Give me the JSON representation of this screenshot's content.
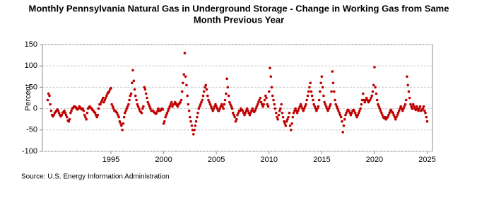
{
  "chart_data": {
    "type": "scatter",
    "title": [
      "Monthly Pennsylvania Natural Gas in Underground Storage - Change in Working Gas from Same",
      "Month Previous Year"
    ],
    "ylabel": "Percent",
    "source": "Source: U.S. Energy Information Administration",
    "color": "#c00000",
    "grid": true,
    "xlim": [
      1988.5,
      2025.5
    ],
    "xticks": [
      1995,
      2000,
      2005,
      2010,
      2015,
      2020,
      2025
    ],
    "ylim": [
      -100,
      150
    ],
    "yticks": [
      -100,
      -50,
      0,
      50,
      100,
      150
    ],
    "x": [
      1989,
      1989.08,
      1989.17,
      1989.25,
      1989.33,
      1989.42,
      1989.5,
      1989.58,
      1989.67,
      1989.75,
      1989.83,
      1989.92,
      1990,
      1990.08,
      1990.17,
      1990.25,
      1990.33,
      1990.42,
      1990.5,
      1990.58,
      1990.67,
      1990.75,
      1990.83,
      1990.92,
      1991,
      1991.08,
      1991.17,
      1991.25,
      1991.33,
      1991.42,
      1991.5,
      1991.58,
      1991.67,
      1991.75,
      1991.83,
      1991.92,
      1992,
      1992.08,
      1992.17,
      1992.25,
      1992.33,
      1992.42,
      1992.5,
      1992.58,
      1992.67,
      1992.75,
      1992.83,
      1992.92,
      1993,
      1993.08,
      1993.17,
      1993.25,
      1993.33,
      1993.42,
      1993.5,
      1993.58,
      1993.67,
      1993.75,
      1993.83,
      1993.92,
      1994,
      1994.08,
      1994.17,
      1994.25,
      1994.33,
      1994.42,
      1994.5,
      1994.58,
      1994.67,
      1994.75,
      1994.83,
      1994.92,
      1995,
      1995.08,
      1995.17,
      1995.25,
      1995.33,
      1995.42,
      1995.5,
      1995.58,
      1995.67,
      1995.75,
      1995.83,
      1995.92,
      1996,
      1996.08,
      1996.17,
      1996.25,
      1996.33,
      1996.42,
      1996.5,
      1996.58,
      1996.67,
      1996.75,
      1996.83,
      1996.92,
      1997,
      1997.08,
      1997.17,
      1997.25,
      1997.33,
      1997.42,
      1997.5,
      1997.58,
      1997.67,
      1997.75,
      1997.83,
      1997.92,
      1998,
      1998.08,
      1998.17,
      1998.25,
      1998.33,
      1998.42,
      1998.5,
      1998.58,
      1998.67,
      1998.75,
      1998.83,
      1998.92,
      1999,
      1999.08,
      1999.17,
      1999.25,
      1999.33,
      1999.42,
      1999.5,
      1999.58,
      1999.67,
      1999.75,
      1999.83,
      1999.92,
      2000,
      2000.08,
      2000.17,
      2000.25,
      2000.33,
      2000.42,
      2000.5,
      2000.58,
      2000.67,
      2000.75,
      2000.83,
      2000.92,
      2001,
      2001.08,
      2001.17,
      2001.25,
      2001.33,
      2001.42,
      2001.5,
      2001.58,
      2001.67,
      2001.75,
      2001.83,
      2001.92,
      2002,
      2002.08,
      2002.17,
      2002.25,
      2002.33,
      2002.42,
      2002.5,
      2002.58,
      2002.67,
      2002.75,
      2002.83,
      2002.92,
      2003,
      2003.08,
      2003.17,
      2003.25,
      2003.33,
      2003.42,
      2003.5,
      2003.58,
      2003.67,
      2003.75,
      2003.83,
      2003.92,
      2004,
      2004.08,
      2004.17,
      2004.25,
      2004.33,
      2004.42,
      2004.5,
      2004.58,
      2004.67,
      2004.75,
      2004.83,
      2004.92,
      2005,
      2005.08,
      2005.17,
      2005.25,
      2005.33,
      2005.42,
      2005.5,
      2005.58,
      2005.67,
      2005.75,
      2005.83,
      2005.92,
      2006,
      2006.08,
      2006.17,
      2006.25,
      2006.33,
      2006.42,
      2006.5,
      2006.58,
      2006.67,
      2006.75,
      2006.83,
      2006.92,
      2007,
      2007.08,
      2007.17,
      2007.25,
      2007.33,
      2007.42,
      2007.5,
      2007.58,
      2007.67,
      2007.75,
      2007.83,
      2007.92,
      2008,
      2008.08,
      2008.17,
      2008.25,
      2008.33,
      2008.42,
      2008.5,
      2008.58,
      2008.67,
      2008.75,
      2008.83,
      2008.92,
      2009,
      2009.08,
      2009.17,
      2009.25,
      2009.33,
      2009.42,
      2009.5,
      2009.58,
      2009.67,
      2009.75,
      2009.83,
      2009.92,
      2010,
      2010.08,
      2010.17,
      2010.25,
      2010.33,
      2010.42,
      2010.5,
      2010.58,
      2010.67,
      2010.75,
      2010.83,
      2010.92,
      2011,
      2011.08,
      2011.17,
      2011.25,
      2011.33,
      2011.42,
      2011.5,
      2011.58,
      2011.67,
      2011.75,
      2011.83,
      2011.92,
      2012,
      2012.08,
      2012.17,
      2012.25,
      2012.33,
      2012.42,
      2012.5,
      2012.58,
      2012.67,
      2012.75,
      2012.83,
      2012.92,
      2013,
      2013.08,
      2013.17,
      2013.25,
      2013.33,
      2013.42,
      2013.5,
      2013.58,
      2013.67,
      2013.75,
      2013.83,
      2013.92,
      2014,
      2014.08,
      2014.17,
      2014.25,
      2014.33,
      2014.42,
      2014.5,
      2014.58,
      2014.67,
      2014.75,
      2014.83,
      2014.92,
      2015,
      2015.08,
      2015.17,
      2015.25,
      2015.33,
      2015.42,
      2015.5,
      2015.58,
      2015.67,
      2015.75,
      2015.83,
      2015.92,
      2016,
      2016.08,
      2016.17,
      2016.25,
      2016.33,
      2016.42,
      2016.5,
      2016.58,
      2016.67,
      2016.75,
      2016.83,
      2016.92,
      2017,
      2017.08,
      2017.17,
      2017.25,
      2017.33,
      2017.42,
      2017.5,
      2017.58,
      2017.67,
      2017.75,
      2017.83,
      2017.92,
      2018,
      2018.08,
      2018.17,
      2018.25,
      2018.33,
      2018.42,
      2018.5,
      2018.58,
      2018.67,
      2018.75,
      2018.83,
      2018.92,
      2019,
      2019.08,
      2019.17,
      2019.25,
      2019.33,
      2019.42,
      2019.5,
      2019.58,
      2019.67,
      2019.75,
      2019.83,
      2019.92,
      2020,
      2020.08,
      2020.17,
      2020.25,
      2020.33,
      2020.42,
      2020.5,
      2020.58,
      2020.67,
      2020.75,
      2020.83,
      2020.92,
      2021,
      2021.08,
      2021.17,
      2021.25,
      2021.33,
      2021.42,
      2021.5,
      2021.58,
      2021.67,
      2021.75,
      2021.83,
      2021.92,
      2022,
      2022.08,
      2022.17,
      2022.25,
      2022.33,
      2022.42,
      2022.5,
      2022.58,
      2022.67,
      2022.75,
      2022.83,
      2022.92,
      2023,
      2023.08,
      2023.17,
      2023.25,
      2023.33,
      2023.42,
      2023.5,
      2023.58,
      2023.67,
      2023.75,
      2023.83,
      2023.92,
      2024,
      2024.08,
      2024.17,
      2024.25,
      2024.33,
      2024.42,
      2024.5,
      2024.58,
      2024.67,
      2024.75,
      2024.83,
      2024.92,
      2025
    ],
    "values": [
      20,
      35,
      30,
      10,
      -5,
      -15,
      -18,
      -15,
      -10,
      -8,
      -5,
      -2,
      -5,
      -10,
      -15,
      -18,
      -15,
      -10,
      -8,
      -5,
      -10,
      -15,
      -20,
      -28,
      -30,
      -25,
      -10,
      -5,
      0,
      2,
      5,
      5,
      3,
      0,
      -2,
      0,
      5,
      3,
      0,
      -2,
      0,
      -5,
      -15,
      -20,
      -25,
      -10,
      0,
      3,
      5,
      2,
      0,
      -3,
      -5,
      -8,
      -10,
      -15,
      -20,
      -15,
      0,
      10,
      10,
      15,
      20,
      25,
      15,
      20,
      25,
      30,
      35,
      38,
      40,
      45,
      48,
      10,
      5,
      0,
      -5,
      -5,
      -8,
      -10,
      -15,
      -20,
      -30,
      -35,
      -40,
      -50,
      -35,
      -20,
      -10,
      -5,
      0,
      5,
      10,
      20,
      30,
      35,
      60,
      90,
      65,
      45,
      30,
      20,
      10,
      5,
      0,
      -5,
      -8,
      -10,
      0,
      5,
      50,
      45,
      35,
      25,
      15,
      10,
      5,
      0,
      -5,
      -5,
      -5,
      -8,
      -10,
      -12,
      -10,
      -5,
      0,
      -5,
      -5,
      -3,
      0,
      -2,
      -35,
      -30,
      -20,
      -15,
      -10,
      -5,
      0,
      5,
      10,
      15,
      5,
      10,
      10,
      15,
      12,
      8,
      5,
      10,
      12,
      15,
      20,
      40,
      60,
      80,
      130,
      75,
      55,
      30,
      10,
      -5,
      -20,
      -30,
      -40,
      -50,
      -60,
      -50,
      -40,
      -30,
      -20,
      -10,
      0,
      5,
      10,
      15,
      20,
      30,
      40,
      50,
      55,
      45,
      30,
      20,
      15,
      10,
      5,
      0,
      -5,
      0,
      5,
      10,
      5,
      0,
      -5,
      -5,
      0,
      5,
      10,
      5,
      0,
      10,
      20,
      35,
      70,
      50,
      30,
      15,
      10,
      5,
      0,
      -10,
      -15,
      -20,
      -30,
      -25,
      -15,
      -10,
      -5,
      -5,
      0,
      -3,
      -5,
      -10,
      -15,
      -10,
      -5,
      0,
      -5,
      -10,
      -15,
      -10,
      -5,
      0,
      -5,
      -8,
      -5,
      0,
      5,
      10,
      15,
      20,
      25,
      15,
      10,
      5,
      10,
      20,
      30,
      25,
      10,
      5,
      40,
      95,
      75,
      50,
      30,
      20,
      10,
      0,
      -10,
      -20,
      -25,
      -15,
      -5,
      0,
      10,
      -10,
      -20,
      -30,
      -35,
      -40,
      -30,
      -25,
      -20,
      -10,
      -40,
      -50,
      -35,
      -20,
      -10,
      -5,
      0,
      -5,
      -10,
      -5,
      0,
      5,
      10,
      5,
      0,
      -5,
      0,
      5,
      10,
      20,
      30,
      40,
      50,
      60,
      40,
      30,
      20,
      10,
      5,
      0,
      -5,
      0,
      5,
      20,
      40,
      60,
      75,
      50,
      30,
      15,
      10,
      5,
      0,
      -5,
      0,
      5,
      10,
      40,
      87,
      60,
      40,
      20,
      10,
      5,
      0,
      -5,
      -10,
      -15,
      -20,
      -30,
      -55,
      -40,
      -25,
      -15,
      -10,
      -5,
      -3,
      -5,
      -10,
      -15,
      -10,
      -5,
      -3,
      -5,
      -10,
      -15,
      -20,
      -15,
      -10,
      -5,
      0,
      10,
      20,
      35,
      20,
      15,
      20,
      25,
      20,
      15,
      18,
      20,
      25,
      30,
      40,
      55,
      97,
      50,
      35,
      20,
      10,
      5,
      0,
      -5,
      -10,
      -15,
      -20,
      -22,
      -20,
      -25,
      -22,
      -20,
      -15,
      -10,
      -5,
      -3,
      -8,
      -10,
      -15,
      -20,
      -25,
      -20,
      -15,
      -10,
      -5,
      0,
      5,
      0,
      -5,
      0,
      5,
      10,
      20,
      75,
      55,
      40,
      25,
      10,
      5,
      0,
      10,
      5,
      0,
      -3,
      5,
      0,
      -5,
      0,
      5,
      -5,
      -3,
      0,
      5,
      -5,
      -10,
      -20,
      -30
    ]
  }
}
